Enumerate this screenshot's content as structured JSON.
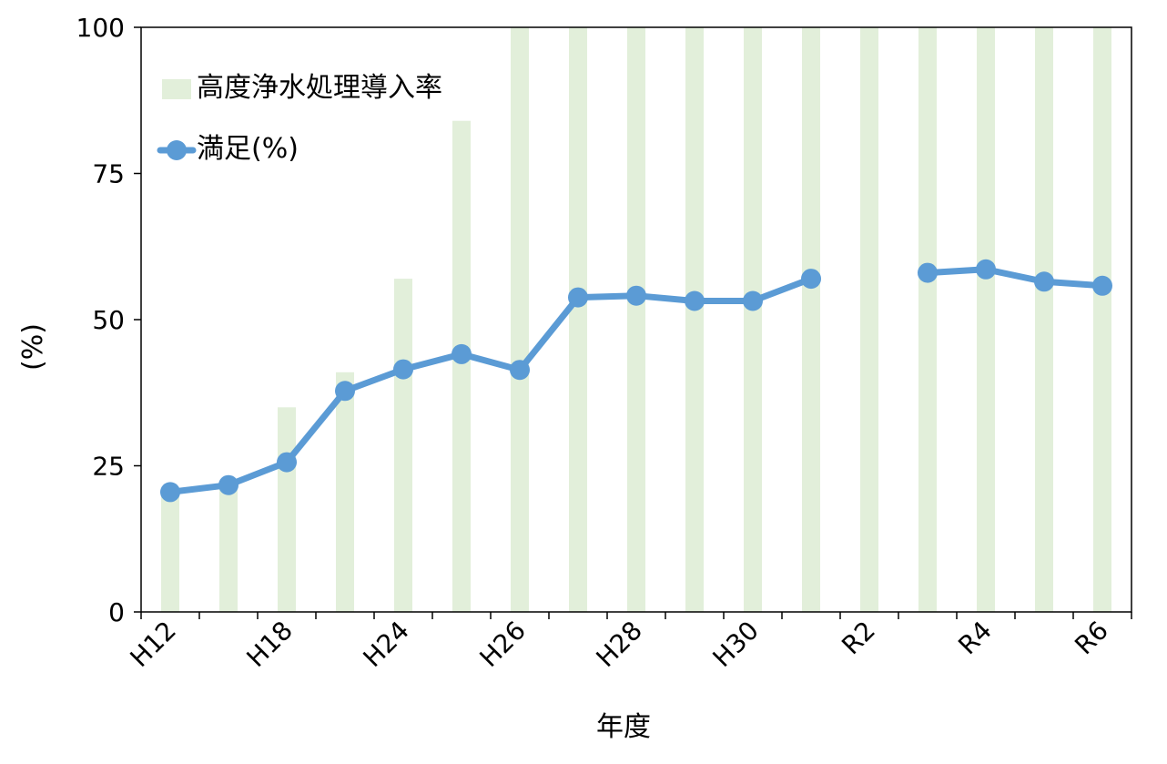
{
  "chart_data": {
    "type": "bar+line",
    "x_tick_labels": [
      "H12",
      "",
      "H18",
      "",
      "H24",
      "",
      "H26",
      "",
      "H28",
      "",
      "H30",
      "",
      "R2",
      "",
      "R4",
      "",
      "R6"
    ],
    "y_ticks": [
      0,
      25,
      50,
      75,
      100
    ],
    "ylim": [
      0,
      100
    ],
    "xlabel": "年度",
    "ylabel": "(%)",
    "series": [
      {
        "name": "高度浄水処理導入率",
        "type": "bar",
        "color": "#e2efda",
        "values": [
          21,
          21,
          35,
          41,
          57,
          84,
          100,
          100,
          100,
          100,
          100,
          100,
          100,
          100,
          100,
          100,
          100
        ]
      },
      {
        "name": "満足(%)",
        "type": "line",
        "color": "#5b9bd5",
        "values": [
          20.5,
          21.7,
          25.6,
          37.8,
          41.5,
          44.1,
          41.4,
          53.8,
          54.1,
          53.2,
          53.2,
          57.0,
          null,
          58.0,
          58.6,
          56.5,
          55.8
        ]
      }
    ],
    "legend": {
      "position": "top-left"
    },
    "grid": false
  }
}
